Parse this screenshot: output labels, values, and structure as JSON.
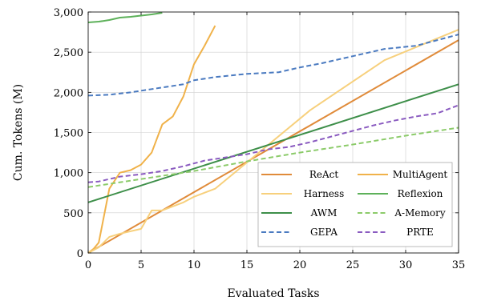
{
  "chart_data": {
    "type": "line",
    "xlabel": "Evaluated Tasks",
    "ylabel": "Cum. Tokens (M)",
    "xlim": [
      0,
      35
    ],
    "ylim": [
      0,
      3000
    ],
    "x_ticks": [
      0,
      5,
      10,
      15,
      20,
      25,
      30,
      35
    ],
    "y_ticks": [
      0,
      500,
      1000,
      1500,
      2000,
      2500,
      3000
    ],
    "x_tick_labels": [
      "0",
      "5",
      "10",
      "15",
      "20",
      "25",
      "30",
      "35"
    ],
    "y_tick_labels": [
      "0",
      "500",
      "1,000",
      "1,500",
      "2,000",
      "2,500",
      "3,000"
    ],
    "grid": true,
    "legend_position": "bottom-right",
    "series": [
      {
        "name": "ReAct",
        "color": "#E08B3A",
        "dash": "solid",
        "x": [
          0,
          35
        ],
        "y": [
          0,
          2650
        ]
      },
      {
        "name": "MultiAgent",
        "color": "#F0B24A",
        "dash": "solid",
        "x": [
          0,
          0.5,
          1,
          2,
          3,
          4,
          5,
          6,
          7,
          8,
          9,
          10,
          11,
          12
        ],
        "y": [
          0,
          50,
          130,
          800,
          1000,
          1030,
          1100,
          1250,
          1600,
          1700,
          1950,
          2350,
          2580,
          2830
        ]
      },
      {
        "name": "Harness",
        "color": "#F7D07C",
        "dash": "solid",
        "x": [
          0,
          1,
          2,
          3,
          5,
          6,
          7,
          8,
          9,
          10,
          12,
          21,
          28,
          35
        ],
        "y": [
          0,
          70,
          200,
          240,
          300,
          530,
          530,
          580,
          630,
          700,
          800,
          1780,
          2400,
          2780
        ]
      },
      {
        "name": "Reflexion",
        "color": "#5DB15A",
        "dash": "solid",
        "x": [
          0,
          1,
          2,
          3,
          4,
          5,
          6,
          7
        ],
        "y": [
          2870,
          2880,
          2900,
          2930,
          2940,
          2955,
          2970,
          2990
        ]
      },
      {
        "name": "AWM",
        "color": "#3E8F4A",
        "dash": "solid",
        "x": [
          0,
          35
        ],
        "y": [
          630,
          2100
        ]
      },
      {
        "name": "A-Memory",
        "color": "#8CCB6A",
        "dash": "dashed",
        "x": [
          0,
          5,
          10,
          15,
          20,
          25,
          30,
          35
        ],
        "y": [
          820,
          920,
          1020,
          1140,
          1250,
          1350,
          1460,
          1560
        ]
      },
      {
        "name": "GEPA",
        "color": "#4A7AC0",
        "dash": "dashed",
        "x": [
          0,
          2,
          4,
          6,
          8,
          9,
          10,
          12,
          15,
          18,
          20,
          22,
          25,
          28,
          31,
          33,
          35
        ],
        "y": [
          1960,
          1970,
          2000,
          2040,
          2080,
          2100,
          2150,
          2190,
          2230,
          2250,
          2310,
          2360,
          2450,
          2540,
          2580,
          2650,
          2720
        ]
      },
      {
        "name": "PRTE",
        "color": "#8A5BC0",
        "dash": "dashed",
        "x": [
          0,
          1,
          2,
          3,
          5,
          7,
          9,
          11,
          13,
          15,
          17,
          19,
          21,
          23,
          25,
          27,
          29,
          31,
          33,
          34,
          35
        ],
        "y": [
          880,
          890,
          920,
          950,
          980,
          1020,
          1080,
          1150,
          1190,
          1230,
          1290,
          1320,
          1380,
          1450,
          1520,
          1590,
          1650,
          1700,
          1740,
          1790,
          1840
        ]
      }
    ]
  }
}
